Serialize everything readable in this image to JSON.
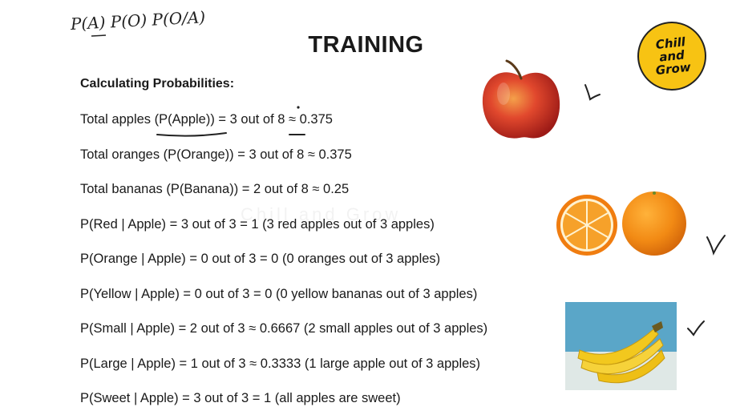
{
  "slide": {
    "title": "TRAINING",
    "handwritten_note": "P(A) P(O) P(O/A)",
    "section_heading": "Calculating Probabilities:",
    "lines": [
      "Total apples (P(Apple)) = 3 out of 8 ≈ 0.375",
      "Total oranges (P(Orange)) = 3 out of 8 ≈ 0.375",
      "Total bananas (P(Banana)) = 2 out of 8 ≈ 0.25",
      "P(Red | Apple) = 3 out of 3 = 1 (3 red apples out of 3 apples)",
      "P(Orange | Apple) = 0 out of 3 = 0 (0 oranges out of 3 apples)",
      "P(Yellow | Apple) = 0 out of 3 = 0 (0 yellow bananas out of 3 apples)",
      "P(Small | Apple) = 2 out of 3 ≈ 0.6667 (2 small apples out of 3 apples)",
      "P(Large | Apple) = 1 out of 3 ≈ 0.3333 (1 large apple out of 3 apples)",
      "P(Sweet | Apple) = 3 out of 3 = 1 (all apples are sweet)"
    ]
  },
  "logo": {
    "line1": "Chill",
    "line2": "and",
    "line3": "Grow",
    "color": "#f7c313"
  },
  "watermark": "Chill and Grow",
  "images": [
    {
      "name": "apple-image",
      "color": "#d83a2a"
    },
    {
      "name": "orange-image",
      "color": "#f28a14"
    },
    {
      "name": "banana-image",
      "color": "#f2c81e",
      "background": "#5aa6c8"
    }
  ]
}
